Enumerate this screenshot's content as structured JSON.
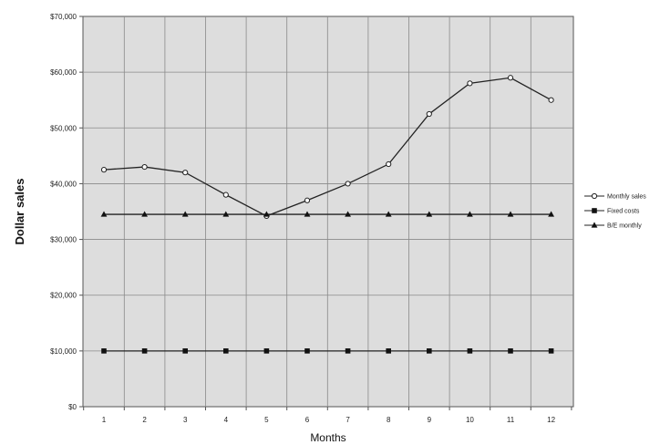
{
  "chart_data": {
    "type": "line",
    "title": "",
    "xlabel": "Months",
    "ylabel": "Dollar sales",
    "x": [
      1,
      2,
      3,
      4,
      5,
      6,
      7,
      8,
      9,
      10,
      11,
      12
    ],
    "x_tick_labels": [
      "1",
      "2",
      "3",
      "4",
      "5",
      "6",
      "7",
      "8",
      "9",
      "10",
      "11",
      "12"
    ],
    "ylim": [
      0,
      70000
    ],
    "y_ticks": [
      0,
      10000,
      20000,
      30000,
      40000,
      50000,
      60000,
      70000
    ],
    "y_tick_labels": [
      "$0",
      "$10,000",
      "$20,000",
      "$30,000",
      "$40,000",
      "$50,000",
      "$60,000",
      "$70,000"
    ],
    "grid": true,
    "legend_position": "right",
    "plot_background": "#dddddd",
    "series": [
      {
        "name": "Monthly sales",
        "marker": "circle",
        "values": [
          42500,
          43000,
          42000,
          38000,
          34200,
          37000,
          40000,
          43500,
          52500,
          58000,
          59000,
          55000
        ]
      },
      {
        "name": "Fixed costs",
        "marker": "square",
        "values": [
          10000,
          10000,
          10000,
          10000,
          10000,
          10000,
          10000,
          10000,
          10000,
          10000,
          10000,
          10000
        ]
      },
      {
        "name": "B/E monthly",
        "marker": "triangle",
        "values": [
          34500,
          34500,
          34500,
          34500,
          34500,
          34500,
          34500,
          34500,
          34500,
          34500,
          34500,
          34500
        ]
      }
    ]
  }
}
